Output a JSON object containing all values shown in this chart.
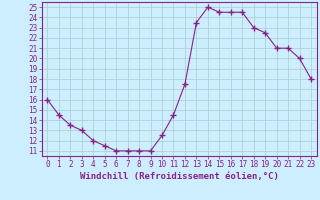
{
  "x": [
    0,
    1,
    2,
    3,
    4,
    5,
    6,
    7,
    8,
    9,
    10,
    11,
    12,
    13,
    14,
    15,
    16,
    17,
    18,
    19,
    20,
    21,
    22,
    23
  ],
  "y": [
    16,
    14.5,
    13.5,
    13,
    12,
    11.5,
    11,
    11,
    11,
    11,
    12.5,
    14.5,
    17.5,
    23.5,
    25,
    24.5,
    24.5,
    24.5,
    23,
    22.5,
    21,
    21,
    20,
    18
  ],
  "color": "#882288",
  "bg_color": "#cceeff",
  "grid_color": "#aacccc",
  "xlabel": "Windchill (Refroidissement éolien,°C)",
  "xlim": [
    -0.5,
    23.5
  ],
  "ylim": [
    10.5,
    25.5
  ],
  "yticks": [
    11,
    12,
    13,
    14,
    15,
    16,
    17,
    18,
    19,
    20,
    21,
    22,
    23,
    24,
    25
  ],
  "xticks": [
    0,
    1,
    2,
    3,
    4,
    5,
    6,
    7,
    8,
    9,
    10,
    11,
    12,
    13,
    14,
    15,
    16,
    17,
    18,
    19,
    20,
    21,
    22,
    23
  ],
  "marker": "+",
  "marker_size": 4,
  "line_width": 0.8,
  "xlabel_fontsize": 6.5,
  "tick_fontsize": 5.5
}
